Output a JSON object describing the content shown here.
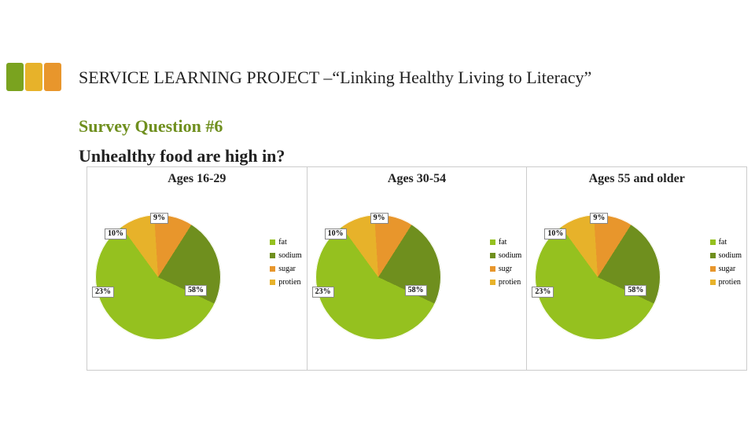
{
  "logo": {
    "colors": [
      "#7aa31f",
      "#e7b22a",
      "#e8962c"
    ]
  },
  "header": "SERVICE LEARNING PROJECT –“Linking Healthy Living to Literacy”",
  "sub1": {
    "text": "Survey Question #6",
    "color": "#6f8f1e"
  },
  "sub2": "Unhealthy food are high in?",
  "charts": [
    {
      "title": "Ages 16-29",
      "type": "pie",
      "slices": [
        {
          "label": "fat",
          "value": 58,
          "color": "#95c11f"
        },
        {
          "label": "sodium",
          "value": 23,
          "color": "#6f8f1e"
        },
        {
          "label": "sugar",
          "value": 10,
          "color": "#e8962c"
        },
        {
          "label": "protien",
          "value": 9,
          "color": "#e7b22a"
        }
      ],
      "legend": [
        "fat",
        "sodium",
        "sugar",
        "protien"
      ],
      "data_labels": [
        "9%",
        "10%",
        "23%",
        "58%"
      ],
      "bg": "#ffffff",
      "title_fontsize": 16,
      "label_fontsize": 10
    },
    {
      "title": "Ages 30-54",
      "type": "pie",
      "slices": [
        {
          "label": "fat",
          "value": 58,
          "color": "#95c11f"
        },
        {
          "label": "sodium",
          "value": 23,
          "color": "#6f8f1e"
        },
        {
          "label": "sugr",
          "value": 10,
          "color": "#e8962c"
        },
        {
          "label": "protien",
          "value": 9,
          "color": "#e7b22a"
        }
      ],
      "legend": [
        "fat",
        "sodium",
        "sugr",
        "protien"
      ],
      "data_labels": [
        "9%",
        "10%",
        "23%",
        "58%"
      ],
      "bg": "#ffffff",
      "title_fontsize": 16,
      "label_fontsize": 10
    },
    {
      "title": "Ages 55 and older",
      "type": "pie",
      "slices": [
        {
          "label": "fat",
          "value": 58,
          "color": "#95c11f"
        },
        {
          "label": "sodium",
          "value": 23,
          "color": "#6f8f1e"
        },
        {
          "label": "sugar",
          "value": 10,
          "color": "#e8962c"
        },
        {
          "label": "protien",
          "value": 9,
          "color": "#e7b22a"
        }
      ],
      "legend": [
        "fat",
        "sodium",
        "sugar",
        "protien"
      ],
      "data_labels": [
        "9%",
        "10%",
        "23%",
        "58%"
      ],
      "bg": "#ffffff",
      "title_fontsize": 16,
      "label_fontsize": 10
    }
  ]
}
